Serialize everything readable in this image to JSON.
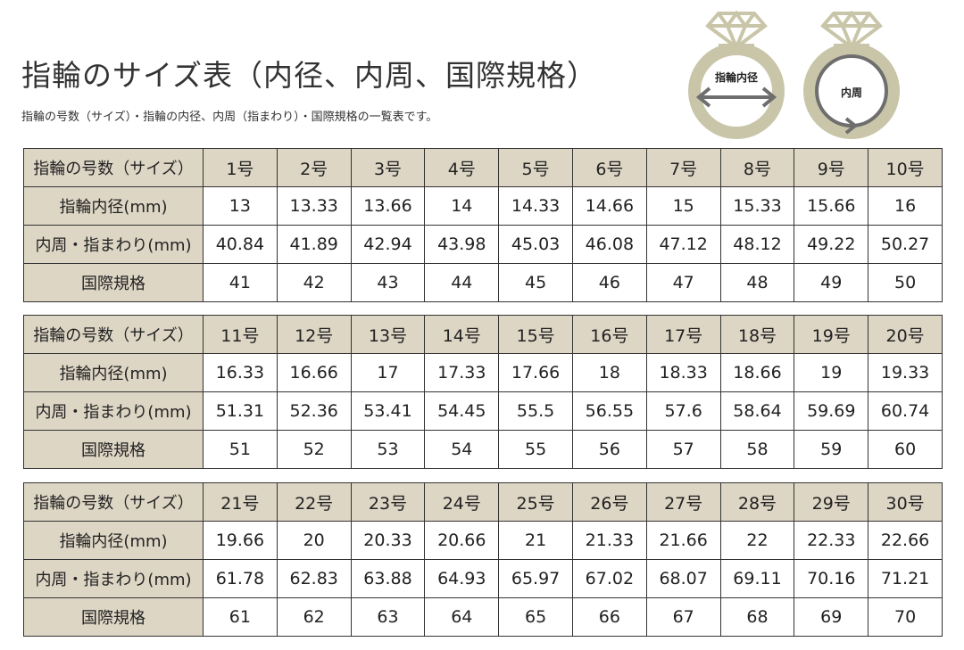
{
  "title": "指輪のサイズ表（内径、内周、国際規格）",
  "subtitle": "指輪の号数（サイズ）・指輪の内径、内周（指まわり）・国際規格の一覧表です。",
  "illustration": {
    "diameter_label": "指輪内径",
    "circumference_label": "内周",
    "ring_color": "#c9c5a8",
    "arrow_color": "#6e6e6e"
  },
  "colors": {
    "header_bg": "#ddd6c5"
  },
  "row_labels": [
    "指輪の号数（サイズ）",
    "指輪内径(mm)",
    "内周・指まわり(mm)",
    "国際規格"
  ],
  "tables": [
    {
      "sizes": [
        "1号",
        "2号",
        "3号",
        "4号",
        "5号",
        "6号",
        "7号",
        "8号",
        "9号",
        "10号"
      ],
      "diameter": [
        "13",
        "13.33",
        "13.66",
        "14",
        "14.33",
        "14.66",
        "15",
        "15.33",
        "15.66",
        "16"
      ],
      "circumference": [
        "40.84",
        "41.89",
        "42.94",
        "43.98",
        "45.03",
        "46.08",
        "47.12",
        "48.12",
        "49.22",
        "50.27"
      ],
      "international": [
        "41",
        "42",
        "43",
        "44",
        "45",
        "46",
        "47",
        "48",
        "49",
        "50"
      ]
    },
    {
      "sizes": [
        "11号",
        "12号",
        "13号",
        "14号",
        "15号",
        "16号",
        "17号",
        "18号",
        "19号",
        "20号"
      ],
      "diameter": [
        "16.33",
        "16.66",
        "17",
        "17.33",
        "17.66",
        "18",
        "18.33",
        "18.66",
        "19",
        "19.33"
      ],
      "circumference": [
        "51.31",
        "52.36",
        "53.41",
        "54.45",
        "55.5",
        "56.55",
        "57.6",
        "58.64",
        "59.69",
        "60.74"
      ],
      "international": [
        "51",
        "52",
        "53",
        "54",
        "55",
        "56",
        "57",
        "58",
        "59",
        "60"
      ]
    },
    {
      "sizes": [
        "21号",
        "22号",
        "23号",
        "24号",
        "25号",
        "26号",
        "27号",
        "28号",
        "29号",
        "30号"
      ],
      "diameter": [
        "19.66",
        "20",
        "20.33",
        "20.66",
        "21",
        "21.33",
        "21.66",
        "22",
        "22.33",
        "22.66"
      ],
      "circumference": [
        "61.78",
        "62.83",
        "63.88",
        "64.93",
        "65.97",
        "67.02",
        "68.07",
        "69.11",
        "70.16",
        "71.21"
      ],
      "international": [
        "61",
        "62",
        "63",
        "64",
        "65",
        "66",
        "67",
        "68",
        "69",
        "70"
      ]
    }
  ]
}
